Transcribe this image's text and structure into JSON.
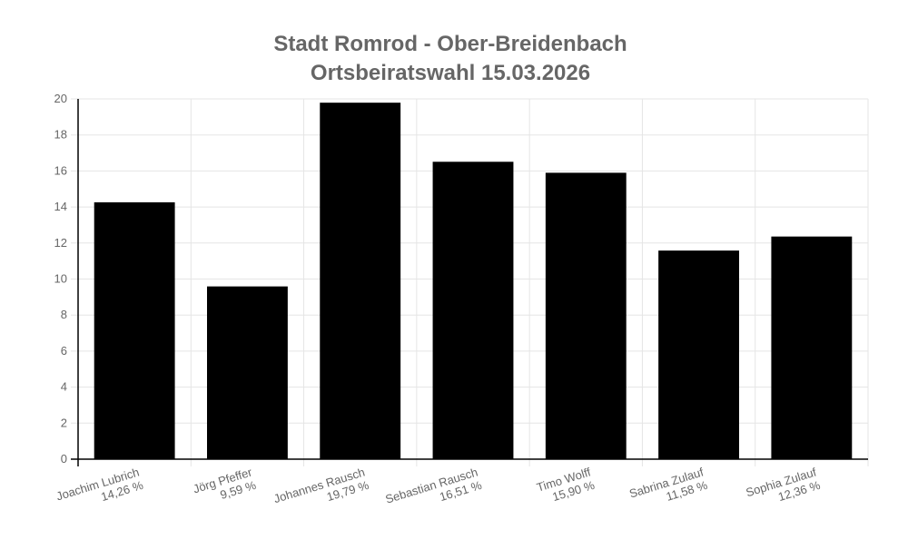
{
  "chart_data": {
    "type": "bar",
    "title": [
      "Stadt Romrod - Ober-Breidenbach",
      "Ortsbeiratswahl 15.03.2026"
    ],
    "categories": [
      [
        "Joachim Lubrich",
        "14,26 %"
      ],
      [
        "Jörg Pfeffer",
        "9,59 %"
      ],
      [
        "Johannes Rausch",
        "19,79 %"
      ],
      [
        "Sebastian Rausch",
        "16,51 %"
      ],
      [
        "Timo Wolff",
        "15,90 %"
      ],
      [
        "Sabrina Zulauf",
        "11,58 %"
      ],
      [
        "Sophia Zulauf",
        "12,36 %"
      ]
    ],
    "series": [
      {
        "values": [
          14.26,
          9.59,
          19.79,
          16.51,
          15.9,
          11.58,
          12.36
        ],
        "color": "#000000"
      }
    ],
    "ylim": [
      0,
      20
    ],
    "yticks": [
      "0",
      "2",
      "4",
      "6",
      "8",
      "10",
      "12",
      "14",
      "16",
      "18",
      "20"
    ],
    "xlabel": "",
    "ylabel": "",
    "grid": true,
    "legend": "none",
    "colors": {
      "bar": "#000000",
      "grid": "#e5e5e5",
      "axis": "#000000",
      "text": "#666666"
    }
  }
}
